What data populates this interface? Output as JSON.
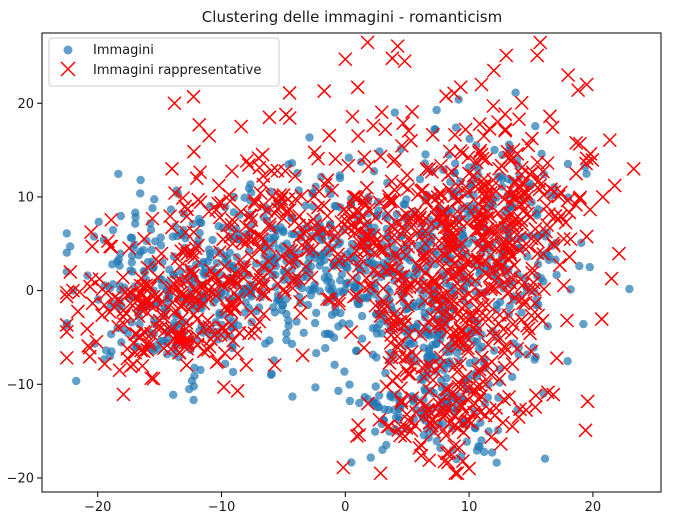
{
  "chart_data": {
    "type": "scatter",
    "title": "Clustering delle immagini - romanticism",
    "xlabel": "",
    "ylabel": "",
    "xlim": [
      -24.5,
      25.5
    ],
    "ylim": [
      -21.5,
      27.5
    ],
    "x_ticks": [
      -20,
      -10,
      0,
      10,
      20
    ],
    "y_ticks": [
      -20,
      -10,
      0,
      10,
      20
    ],
    "x_tick_labels": [
      "−20",
      "−10",
      "0",
      "10",
      "20"
    ],
    "y_tick_labels": [
      "−20",
      "−10",
      "0",
      "10",
      "20"
    ],
    "grid": false,
    "legend_position": "top-left",
    "series": [
      {
        "name": "Immagini",
        "marker": "circle",
        "color": "#1f77b4",
        "opacity": 0.7,
        "clusters": [
          {
            "cx": -14,
            "cy": 0,
            "sx": 4.0,
            "sy": 4.5,
            "n": 260
          },
          {
            "cx": -5,
            "cy": 3,
            "sx": 4.0,
            "sy": 4.0,
            "n": 220
          },
          {
            "cx": 2,
            "cy": 2,
            "sx": 3.5,
            "sy": 5.5,
            "n": 200
          },
          {
            "cx": 8,
            "cy": -3,
            "sx": 3.5,
            "sy": 6.5,
            "n": 260
          },
          {
            "cx": 12,
            "cy": 7,
            "sx": 3.5,
            "sy": 5.0,
            "n": 180
          },
          {
            "cx": 7,
            "cy": -13,
            "sx": 3.0,
            "sy": 2.5,
            "n": 90
          }
        ],
        "points": [
          [
            -22,
            0
          ],
          [
            -19,
            -7
          ],
          [
            3,
            -17
          ],
          [
            9,
            -18
          ],
          [
            11,
            -16
          ],
          [
            -9,
            10
          ],
          [
            -6,
            -9
          ],
          [
            4,
            19
          ],
          [
            16,
            -11
          ]
        ]
      },
      {
        "name": "Immagini rappresentative",
        "marker": "x",
        "color": "#ff0000",
        "clusters": [
          {
            "cx": -14,
            "cy": -2,
            "sx": 4.0,
            "sy": 4.0,
            "n": 220
          },
          {
            "cx": -6,
            "cy": 6,
            "sx": 4.0,
            "sy": 4.5,
            "n": 140
          },
          {
            "cx": 2,
            "cy": 5,
            "sx": 3.0,
            "sy": 6.0,
            "n": 120
          },
          {
            "cx": 9,
            "cy": 0,
            "sx": 4.0,
            "sy": 7.5,
            "n": 300
          },
          {
            "cx": 13,
            "cy": 8,
            "sx": 4.0,
            "sy": 5.5,
            "n": 220
          },
          {
            "cx": 8,
            "cy": -14,
            "sx": 3.0,
            "sy": 2.5,
            "n": 80
          }
        ],
        "points": [
          [
            -22,
            0
          ],
          [
            -20.5,
            1.2
          ],
          [
            -19,
            4.7
          ],
          [
            -13.8,
            20
          ],
          [
            -11.8,
            17.7
          ],
          [
            -8.7,
            -10.7
          ],
          [
            -1.7,
            21.3
          ],
          [
            0,
            24.7
          ],
          [
            1,
            21.7
          ],
          [
            1.8,
            26.5
          ],
          [
            3.8,
            24.8
          ],
          [
            4.8,
            24.5
          ],
          [
            11,
            22
          ],
          [
            12,
            23.5
          ],
          [
            13,
            25.1
          ],
          [
            15.5,
            25.1
          ],
          [
            18,
            23
          ],
          [
            18.8,
            21.4
          ],
          [
            19.5,
            22
          ],
          [
            23.3,
            13
          ],
          [
            20.8,
            10
          ],
          [
            19.8,
            14.6
          ],
          [
            10,
            -19
          ],
          [
            9.5,
            -18.2
          ],
          [
            13.5,
            -14.5
          ],
          [
            14,
            -13.5
          ],
          [
            16.8,
            -11.1
          ],
          [
            -4.5,
            21.1
          ],
          [
            -4.8,
            18.8
          ],
          [
            -14,
            13
          ],
          [
            -12,
            12
          ]
        ]
      }
    ],
    "legend": [
      {
        "label": "Immagini",
        "marker": "circle"
      },
      {
        "label": "Immagini rappresentative",
        "marker": "x"
      }
    ]
  }
}
